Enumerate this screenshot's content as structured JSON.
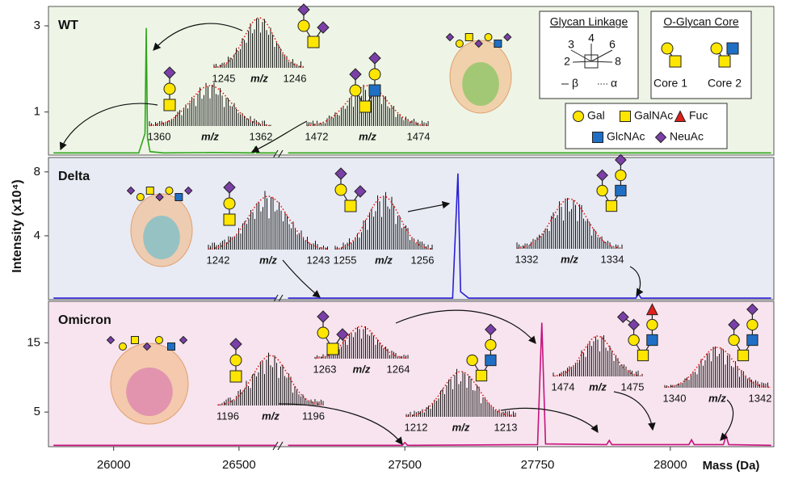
{
  "figure": {
    "y_label": "Intensity (x10⁴)",
    "x_label": "Mass (Da)"
  },
  "legend": {
    "glycan_linkage": {
      "title": "Glycan Linkage",
      "positions": [
        "3",
        "4",
        "6",
        "2",
        "8"
      ],
      "beta": "β",
      "alpha": "α"
    },
    "o_glycan_core": {
      "title": "O-Glycan Core",
      "cores": [
        "Core 1",
        "Core 2"
      ]
    },
    "monosaccharides": [
      {
        "name": "Gal",
        "shape": "circle",
        "color": "#ffe600"
      },
      {
        "name": "GalNAc",
        "shape": "square",
        "color": "#ffe600"
      },
      {
        "name": "Fuc",
        "shape": "triangle",
        "color": "#e0201b"
      },
      {
        "name": "GlcNAc",
        "shape": "square",
        "color": "#1f6fc4"
      },
      {
        "name": "NeuAc",
        "shape": "diamond",
        "color": "#7b3fa8"
      }
    ]
  },
  "chart_data": [
    {
      "type": "line",
      "title": "WT",
      "color": "#2fa51c",
      "background": "#eef5e6",
      "xlim_segments": [
        [
          25740,
          26655
        ],
        [
          27270,
          28195
        ]
      ],
      "ylim": [
        0,
        3.45
      ],
      "yticks": [
        1,
        3
      ],
      "x": [
        25760,
        25900,
        26100,
        26125,
        26130,
        26135,
        26145,
        26200,
        26400,
        26560,
        26565,
        26570,
        26650,
        27000,
        27280,
        28190
      ],
      "values": [
        0.05,
        0.05,
        0.05,
        0.5,
        2.95,
        0.4,
        0.08,
        0.05,
        0.06,
        0.05,
        0.2,
        0.05,
        0.05,
        null,
        0.05,
        0.05
      ],
      "insets": [
        {
          "labels": [
            "1245",
            "m/z",
            "1246"
          ]
        },
        {
          "labels": [
            "1360",
            "m/z",
            "1362"
          ]
        },
        {
          "labels": [
            "1472",
            "m/z",
            "1474"
          ]
        }
      ]
    },
    {
      "type": "line",
      "title": "Delta",
      "color": "#2a1fd6",
      "background": "#e8ebf4",
      "xlim_segments": [
        [
          25740,
          26655
        ],
        [
          27270,
          28195
        ]
      ],
      "ylim": [
        0,
        8.9
      ],
      "yticks": [
        4,
        8
      ],
      "x": [
        25760,
        26650,
        27000,
        27280,
        27590,
        27600,
        27605,
        27620,
        27935,
        27940,
        27945,
        28190
      ],
      "values": [
        0.1,
        0.1,
        null,
        0.1,
        0.1,
        7.9,
        0.5,
        0.1,
        0.1,
        0.35,
        0.1,
        0.1
      ],
      "insets": [
        {
          "labels": [
            "1242",
            "m/z",
            "1243"
          ]
        },
        {
          "labels": [
            "1255",
            "m/z",
            "1256"
          ]
        },
        {
          "labels": [
            "1332",
            "m/z",
            "1334"
          ]
        }
      ]
    },
    {
      "type": "line",
      "title": "Omicron",
      "color": "#c8127e",
      "background": "#f7e4ee",
      "xlim_segments": [
        [
          25740,
          26655
        ],
        [
          27270,
          28195
        ]
      ],
      "ylim": [
        0,
        21
      ],
      "yticks": [
        5,
        15
      ],
      "xticks": [
        26000,
        26500,
        27500,
        27750,
        28000
      ],
      "x": [
        25760,
        26650,
        27000,
        27280,
        27495,
        27500,
        27505,
        27750,
        27758,
        27765,
        27880,
        27885,
        27890,
        28035,
        28040,
        28045,
        28100,
        28105,
        28110,
        28190
      ],
      "values": [
        0.2,
        0.2,
        null,
        0.2,
        0.2,
        0.6,
        0.2,
        0.3,
        17.9,
        0.4,
        0.3,
        0.9,
        0.3,
        0.3,
        1.0,
        0.3,
        0.3,
        1.6,
        0.3,
        0.2
      ],
      "insets": [
        {
          "labels": [
            "1196",
            "m/z",
            "1196"
          ]
        },
        {
          "labels": [
            "1263",
            "m/z",
            "1264"
          ]
        },
        {
          "labels": [
            "1212",
            "m/z",
            "1213"
          ]
        },
        {
          "labels": [
            "1474",
            "m/z",
            "1475"
          ]
        },
        {
          "labels": [
            "1340",
            "m/z",
            "1342"
          ]
        }
      ]
    }
  ]
}
